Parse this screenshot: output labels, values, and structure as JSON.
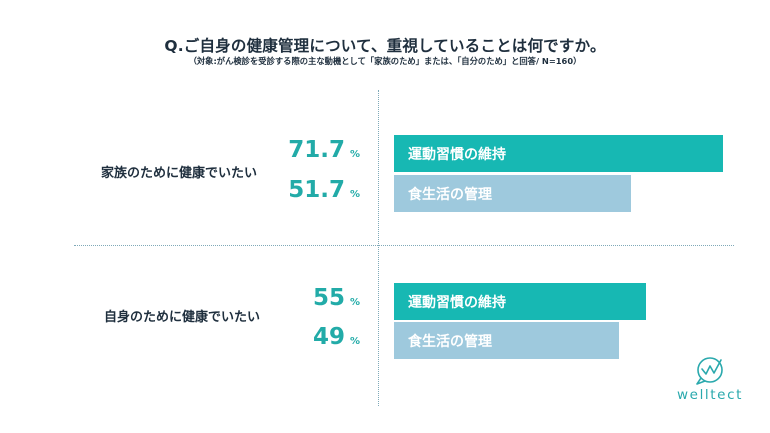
{
  "chart_data": {
    "type": "bar",
    "title": "Q.ご自身の健康管理について、重視していることは何ですか。",
    "subtitle": "（対象:がん検診を受診する際の主な動機として「家族のため」または、「自分のため」と回答/ N=160）",
    "unit": "%",
    "categories": [
      "家族のために健康でいたい",
      "自身のために健康でいたい"
    ],
    "series": [
      {
        "name": "運動習慣の維持",
        "color": "#17b8b3",
        "values": [
          71.7,
          55
        ]
      },
      {
        "name": "食生活の管理",
        "color": "#9ec9dd",
        "values": [
          51.7,
          49
        ]
      }
    ],
    "percent_labels": [
      [
        "71.7",
        "51.7"
      ],
      [
        "55",
        "49"
      ]
    ]
  },
  "logo": {
    "text": "welltect",
    "icon": "chat-bubble-with-check-wave-icon",
    "color": "#2aa9ad"
  },
  "colors": {
    "text": "#1f2f3e",
    "accent": "#22aba8",
    "divider": "#7fa9b8"
  }
}
